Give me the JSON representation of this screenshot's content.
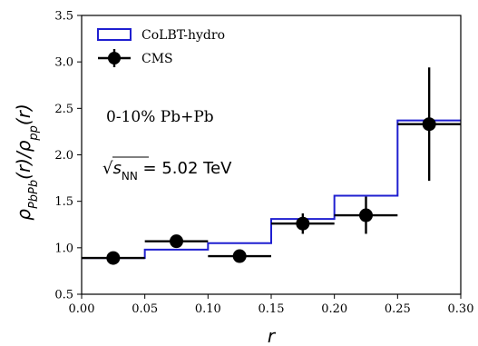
{
  "chart_data": {
    "type": "step-and-scatter",
    "xlabel": "r",
    "ylabel": "ρ_PbPb(r)/ρ_pp(r)",
    "xlim": [
      0.0,
      0.3
    ],
    "ylim": [
      0.5,
      3.5
    ],
    "x_ticks": [
      0.0,
      0.05,
      0.1,
      0.15,
      0.2,
      0.25,
      0.3
    ],
    "x_tick_labels": [
      "0.00",
      "0.05",
      "0.10",
      "0.15",
      "0.20",
      "0.25",
      "0.30"
    ],
    "y_ticks": [
      0.5,
      1.0,
      1.5,
      2.0,
      2.5,
      3.0,
      3.5
    ],
    "y_tick_labels": [
      "0.5",
      "1.0",
      "1.5",
      "2.0",
      "2.5",
      "3.0",
      "3.5"
    ],
    "grid": false,
    "legend_position": "top-left",
    "annotations": {
      "centrality": "0-10% Pb+Pb",
      "energy_sqrt": "√",
      "energy_var": "s",
      "energy_sub": "NN",
      "energy_value": " = 5.02 TeV"
    },
    "series": [
      {
        "name": "CoLBT-hydro",
        "kind": "step",
        "color": "#1f1fd0",
        "bin_edges": [
          0.0,
          0.05,
          0.1,
          0.15,
          0.2,
          0.25,
          0.3
        ],
        "values": [
          0.89,
          0.98,
          1.05,
          1.31,
          1.56,
          2.37
        ]
      },
      {
        "name": "CMS",
        "kind": "errorbar",
        "color": "#000000",
        "x": [
          0.025,
          0.075,
          0.125,
          0.175,
          0.225,
          0.275
        ],
        "y": [
          0.89,
          1.07,
          0.91,
          1.26,
          1.35,
          2.33
        ],
        "xerr": [
          0.025,
          0.025,
          0.025,
          0.025,
          0.025,
          0.025
        ],
        "yerr": [
          0.03,
          0.05,
          0.04,
          0.11,
          0.2,
          0.61
        ]
      }
    ]
  }
}
